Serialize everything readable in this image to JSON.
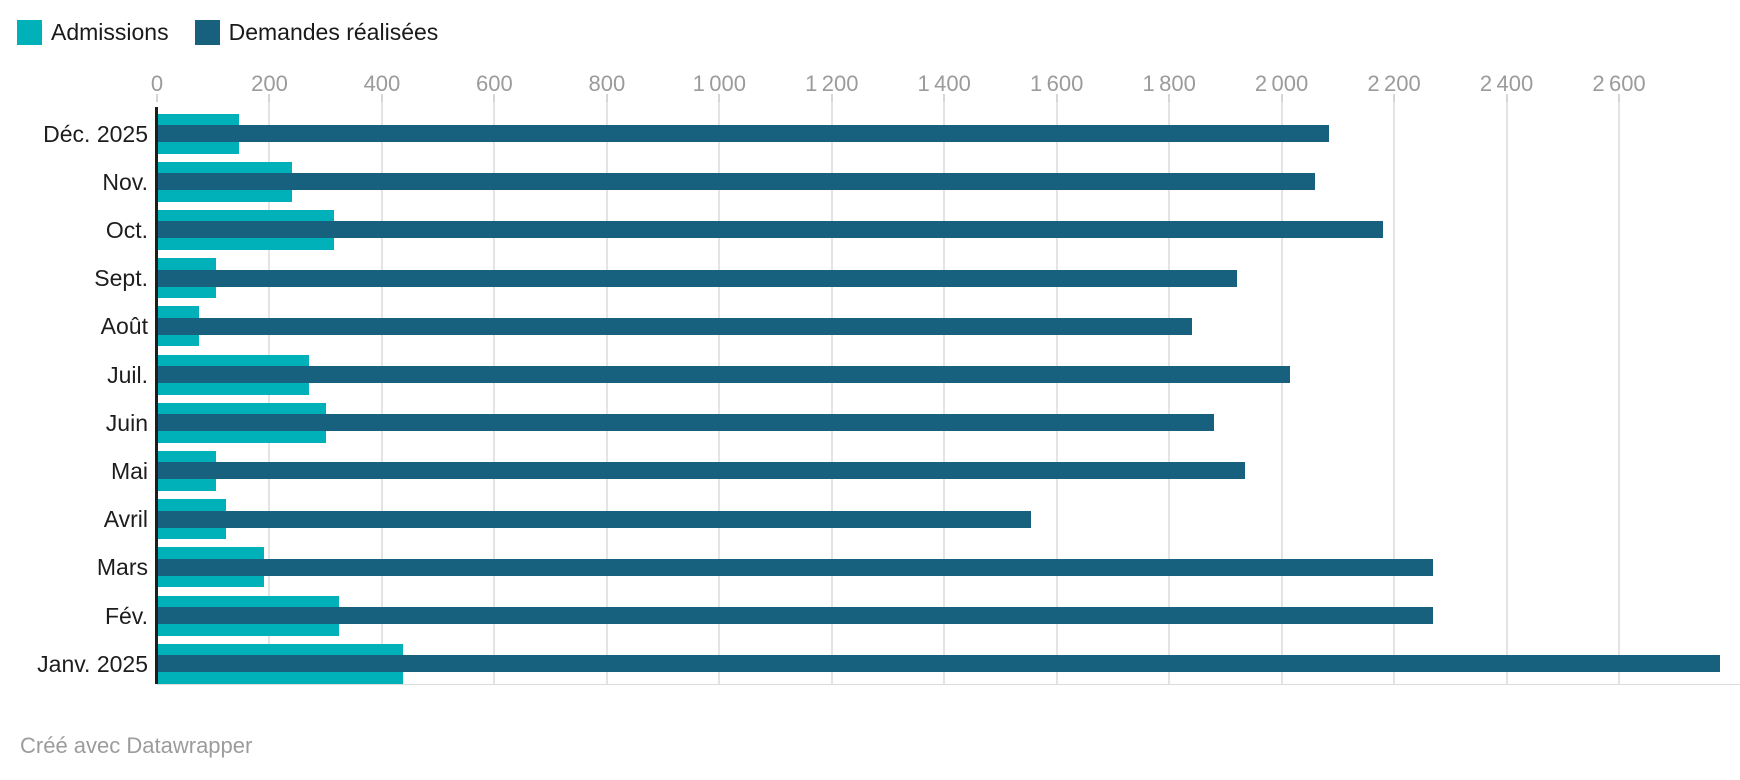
{
  "legend": {
    "items": [
      {
        "label": "Admissions",
        "color": "#00b1ba"
      },
      {
        "label": "Demandes réalisées",
        "color": "#17617e"
      }
    ]
  },
  "footer": {
    "credit": "Créé avec Datawrapper"
  },
  "chart_data": {
    "type": "bar",
    "orientation": "horizontal",
    "title": "",
    "xlabel": "",
    "ylabel": "",
    "xlim": [
      0,
      2815
    ],
    "grid": true,
    "legend_position": "top-left",
    "categories": [
      "Déc. 2025",
      "Nov.",
      "Oct.",
      "Sept.",
      "Août",
      "Juil.",
      "Juin",
      "Mai",
      "Avril",
      "Mars",
      "Fév.",
      "Janv. 2025"
    ],
    "series": [
      {
        "name": "Admissions",
        "color": "#00b1ba",
        "values": [
          145,
          240,
          315,
          105,
          75,
          270,
          300,
          105,
          122,
          190,
          323,
          437
        ]
      },
      {
        "name": "Demandes réalisées",
        "color": "#17617e",
        "values": [
          2085,
          2060,
          2180,
          1920,
          1840,
          2015,
          1880,
          1935,
          1555,
          2270,
          2270,
          2780
        ]
      }
    ],
    "ticks": [
      {
        "value": 0,
        "label": "0"
      },
      {
        "value": 200,
        "label": "200"
      },
      {
        "value": 400,
        "label": "400"
      },
      {
        "value": 600,
        "label": "600"
      },
      {
        "value": 800,
        "label": "800"
      },
      {
        "value": 1000,
        "label": "1 000"
      },
      {
        "value": 1200,
        "label": "1 200"
      },
      {
        "value": 1400,
        "label": "1 400"
      },
      {
        "value": 1600,
        "label": "1 600"
      },
      {
        "value": 1800,
        "label": "1 800"
      },
      {
        "value": 2000,
        "label": "2 000"
      },
      {
        "value": 2200,
        "label": "2 200"
      },
      {
        "value": 2400,
        "label": "2 400"
      },
      {
        "value": 2600,
        "label": "2 600"
      }
    ]
  }
}
